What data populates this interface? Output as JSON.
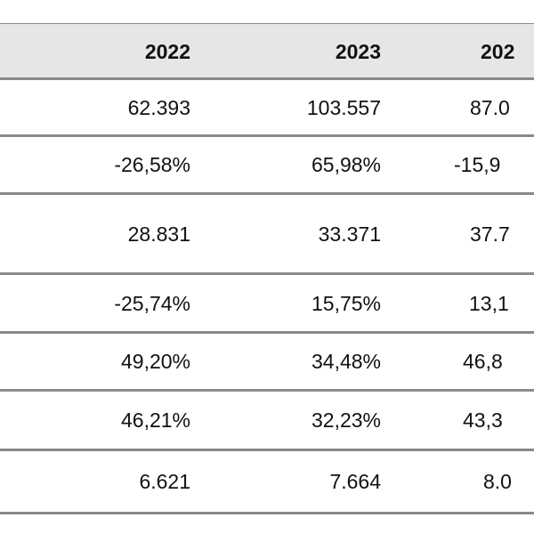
{
  "table": {
    "header": [
      "2022",
      "2023",
      "202"
    ],
    "rows": [
      [
        "62.393",
        "103.557",
        "87.0"
      ],
      [
        "-26,58%",
        "65,98%",
        "-15,9"
      ],
      [
        "28.831",
        "33.371",
        "37.7"
      ],
      [
        "-25,74%",
        "15,75%",
        "13,1"
      ],
      [
        "49,20%",
        "34,48%",
        "46,8"
      ],
      [
        "46,21%",
        "32,23%",
        "43,3"
      ],
      [
        "6.621",
        "7.664",
        "8.0"
      ]
    ]
  }
}
